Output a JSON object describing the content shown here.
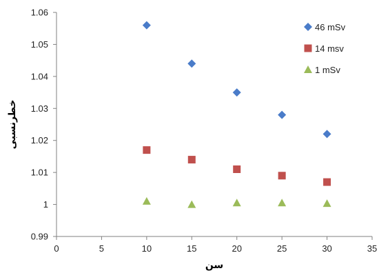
{
  "chart_data": {
    "type": "scatter",
    "xlabel": "سن",
    "ylabel": "خطرنسبی",
    "xlim": [
      0,
      35
    ],
    "ylim": [
      0.99,
      1.06
    ],
    "x_ticks": [
      0,
      5,
      10,
      15,
      20,
      25,
      30,
      35
    ],
    "y_ticks": [
      0.99,
      1,
      1.01,
      1.02,
      1.03,
      1.04,
      1.05,
      1.06
    ],
    "x_tick_labels": [
      "0",
      "5",
      "10",
      "15",
      "20",
      "25",
      "30",
      "35"
    ],
    "y_tick_labels": [
      "0.99",
      "1",
      "1.01",
      "1.02",
      "1.03",
      "1.04",
      "1.05",
      "1.06"
    ],
    "grid": false,
    "legend_position": "top-right",
    "series": [
      {
        "name": "46 mSv",
        "marker": "diamond",
        "color": "#4a7cc9",
        "x": [
          10,
          15,
          20,
          25,
          30
        ],
        "y": [
          1.056,
          1.044,
          1.035,
          1.028,
          1.022
        ]
      },
      {
        "name": "14 msv",
        "marker": "square",
        "color": "#c0504d",
        "x": [
          10,
          15,
          20,
          25,
          30
        ],
        "y": [
          1.017,
          1.014,
          1.011,
          1.009,
          1.007
        ]
      },
      {
        "name": "1 mSv",
        "marker": "triangle",
        "color": "#9bbb59",
        "x": [
          10,
          15,
          20,
          25,
          30
        ],
        "y": [
          1.001,
          1.0,
          1.0005,
          1.0005,
          1.0003
        ]
      }
    ]
  }
}
